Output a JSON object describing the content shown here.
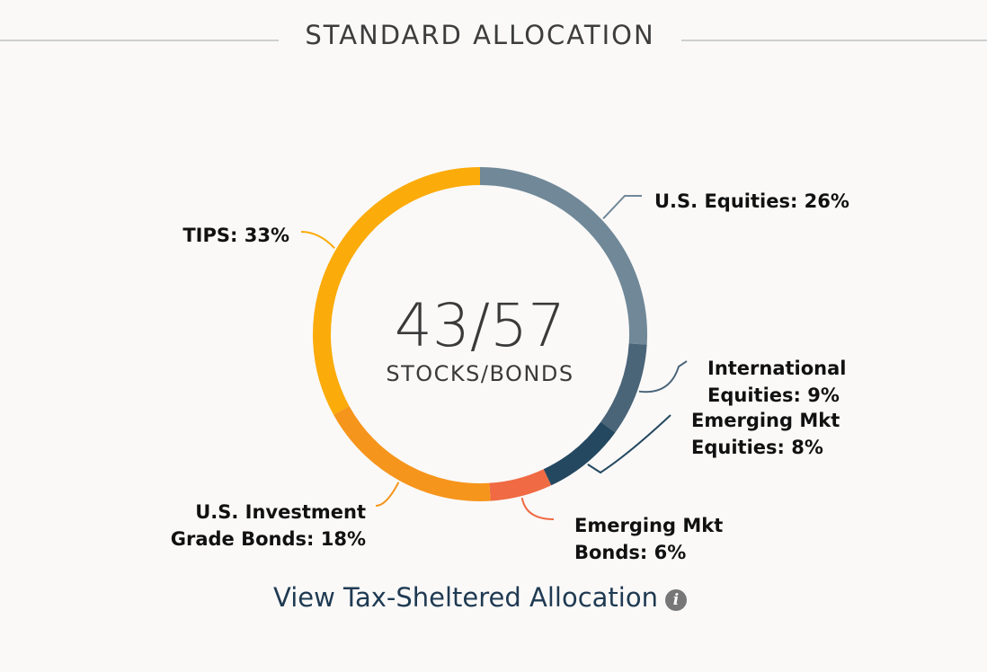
{
  "section_title": "STANDARD ALLOCATION",
  "footer_link": {
    "label": "View Tax-Sheltered Allocation",
    "icon": "info-icon"
  },
  "chart_data": {
    "type": "pie",
    "variant": "donut",
    "center_value": "43/57",
    "center_caption": "STOCKS/BONDS",
    "slices": [
      {
        "label_lines": [
          "U.S. Equities: 26%"
        ],
        "value": 26,
        "color": "#708898"
      },
      {
        "label_lines": [
          "International",
          "Equities: 9%"
        ],
        "value": 9,
        "color": "#4a6478"
      },
      {
        "label_lines": [
          "Emerging Mkt",
          "Equities: 8%"
        ],
        "value": 8,
        "color": "#244860"
      },
      {
        "label_lines": [
          "Emerging Mkt",
          "Bonds: 6%"
        ],
        "value": 6,
        "color": "#f06a43"
      },
      {
        "label_lines": [
          "U.S. Investment",
          "Grade Bonds: 18%"
        ],
        "value": 18,
        "color": "#f6951c"
      },
      {
        "label_lines": [
          "TIPS: 33%"
        ],
        "value": 33,
        "color": "#fbab0a"
      }
    ]
  }
}
